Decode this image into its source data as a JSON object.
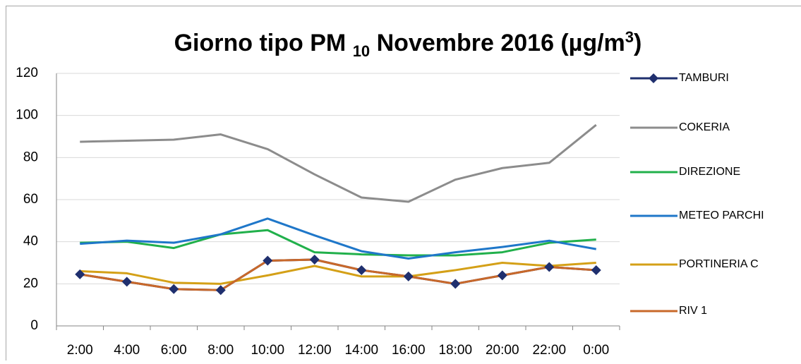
{
  "chart_data": {
    "type": "line",
    "title": [
      "Giorno tipo PM ",
      "10",
      " Novembre 2016 (µg/m",
      "3",
      ")"
    ],
    "categories": [
      "2:00",
      "4:00",
      "6:00",
      "8:00",
      "10:00",
      "12:00",
      "14:00",
      "16:00",
      "18:00",
      "20:00",
      "22:00",
      "0:00"
    ],
    "series": [
      {
        "name": "TAMBURI",
        "color": "#1f2f6e",
        "marker": "diamond",
        "values": [
          24.5,
          21,
          17.5,
          17,
          31,
          31.5,
          26.5,
          23.5,
          20,
          24,
          28,
          26.5
        ]
      },
      {
        "name": "COKERIA",
        "color": "#8c8c8c",
        "values": [
          87.5,
          88,
          88.5,
          91,
          84,
          72,
          61,
          59,
          69.5,
          75,
          77.5,
          95.5
        ]
      },
      {
        "name": "DIREZIONE",
        "color": "#21b04b",
        "values": [
          39.5,
          40,
          37,
          43.5,
          45.5,
          35,
          34,
          33.5,
          33.5,
          35,
          39.5,
          41
        ]
      },
      {
        "name": "METEO PARCHI",
        "color": "#1f77c9",
        "values": [
          39,
          40.5,
          39.5,
          43.5,
          51,
          43,
          35.5,
          32,
          35,
          37.5,
          40.5,
          36.5
        ]
      },
      {
        "name": "PORTINERIA C",
        "color": "#d4a017",
        "values": [
          26,
          25,
          20.5,
          20,
          24,
          28.5,
          23.5,
          23.5,
          26.5,
          30,
          28.5,
          30
        ]
      },
      {
        "name": "RIV 1",
        "color": "#c8682a",
        "values": [
          24.5,
          21,
          17.5,
          17,
          31,
          31.5,
          26.5,
          23.5,
          20,
          24,
          28,
          26.5
        ]
      }
    ],
    "ylim": [
      0,
      120
    ],
    "yticks": [
      0,
      20,
      40,
      60,
      80,
      100,
      120
    ],
    "grid": true,
    "legend": "right"
  }
}
